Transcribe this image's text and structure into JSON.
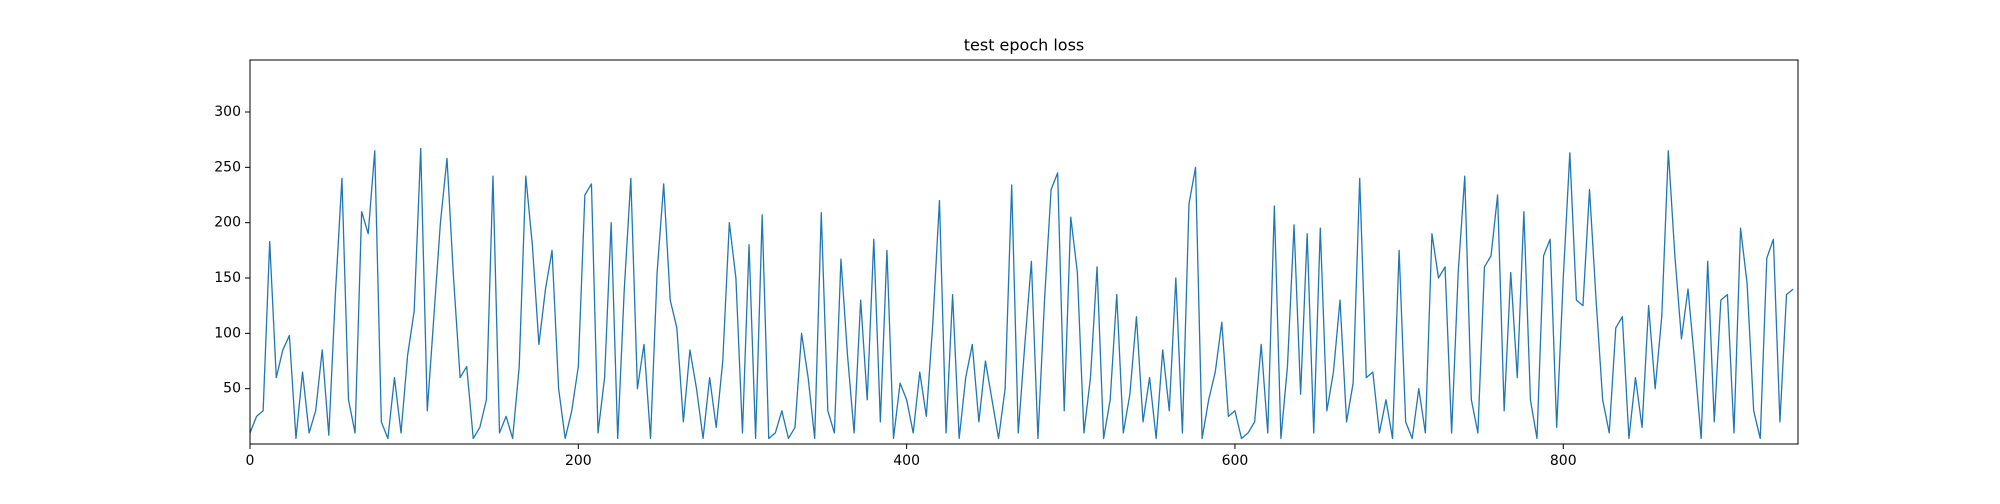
{
  "chart_data": {
    "type": "line",
    "title": "test epoch loss",
    "title_color": "#ff0000",
    "x": [
      0,
      4,
      8,
      12,
      16,
      20,
      24,
      28,
      32,
      36,
      40,
      44,
      48,
      52,
      56,
      60,
      64,
      68,
      72,
      76,
      80,
      84,
      88,
      92,
      96,
      100,
      104,
      108,
      112,
      116,
      120,
      124,
      128,
      132,
      136,
      140,
      144,
      148,
      152,
      156,
      160,
      164,
      168,
      172,
      176,
      180,
      184,
      188,
      192,
      196,
      200,
      204,
      208,
      212,
      216,
      220,
      224,
      228,
      232,
      236,
      240,
      244,
      248,
      252,
      256,
      260,
      264,
      268,
      272,
      276,
      280,
      284,
      288,
      292,
      296,
      300,
      304,
      308,
      312,
      316,
      320,
      324,
      328,
      332,
      336,
      340,
      344,
      348,
      352,
      356,
      360,
      364,
      368,
      372,
      376,
      380,
      384,
      388,
      392,
      396,
      400,
      404,
      408,
      412,
      416,
      420,
      424,
      428,
      432,
      436,
      440,
      444,
      448,
      452,
      456,
      460,
      464,
      468,
      472,
      476,
      480,
      484,
      488,
      492,
      496,
      500,
      504,
      508,
      512,
      516,
      520,
      524,
      528,
      532,
      536,
      540,
      544,
      548,
      552,
      556,
      560,
      564,
      568,
      572,
      576,
      580,
      584,
      588,
      592,
      596,
      600,
      604,
      608,
      612,
      616,
      620,
      624,
      628,
      632,
      636,
      640,
      644,
      648,
      652,
      656,
      660,
      664,
      668,
      672,
      676,
      680,
      684,
      688,
      692,
      696,
      700,
      704,
      708,
      712,
      716,
      720,
      724,
      728,
      732,
      736,
      740,
      744,
      748,
      752,
      756,
      760,
      764,
      768,
      772,
      776,
      780,
      784,
      788,
      792,
      796,
      800,
      804,
      808,
      812,
      816,
      820,
      824,
      828,
      832,
      836,
      840,
      844,
      848,
      852,
      856,
      860,
      864,
      868,
      872,
      876,
      880,
      884,
      888,
      892,
      896,
      900,
      904,
      908,
      912,
      916,
      920,
      924,
      928,
      932,
      936,
      940
    ],
    "series": [
      {
        "color": "#1f77b4",
        "values": [
          10,
          25,
          30,
          183,
          60,
          85,
          98,
          5,
          65,
          10,
          30,
          85,
          8,
          135,
          240,
          40,
          10,
          210,
          190,
          265,
          20,
          5,
          60,
          10,
          80,
          120,
          267,
          30,
          115,
          200,
          258,
          150,
          60,
          70,
          5,
          15,
          40,
          242,
          10,
          25,
          5,
          70,
          242,
          180,
          90,
          140,
          175,
          50,
          5,
          30,
          70,
          225,
          235,
          10,
          60,
          200,
          5,
          140,
          240,
          50,
          90,
          5,
          155,
          235,
          130,
          105,
          20,
          85,
          50,
          5,
          60,
          15,
          75,
          200,
          150,
          10,
          180,
          5,
          207,
          5,
          10,
          30,
          5,
          15,
          100,
          60,
          5,
          209,
          30,
          10,
          167,
          80,
          10,
          130,
          40,
          185,
          20,
          175,
          5,
          55,
          40,
          10,
          65,
          25,
          110,
          220,
          10,
          135,
          5,
          60,
          90,
          20,
          75,
          40,
          5,
          50,
          234,
          10,
          90,
          165,
          5,
          130,
          230,
          245,
          30,
          205,
          155,
          10,
          60,
          160,
          5,
          40,
          135,
          10,
          45,
          115,
          20,
          60,
          5,
          85,
          30,
          150,
          10,
          217,
          250,
          5,
          40,
          65,
          110,
          25,
          30,
          5,
          10,
          20,
          90,
          10,
          215,
          5,
          70,
          198,
          45,
          190,
          10,
          195,
          30,
          65,
          130,
          20,
          55,
          240,
          60,
          65,
          10,
          40,
          5,
          175,
          20,
          5,
          50,
          10,
          190,
          150,
          160,
          10,
          155,
          242,
          40,
          10,
          160,
          170,
          225,
          30,
          155,
          60,
          210,
          40,
          5,
          170,
          185,
          15,
          150,
          263,
          130,
          125,
          230,
          130,
          40,
          10,
          105,
          115,
          5,
          60,
          15,
          125,
          50,
          115,
          265,
          170,
          95,
          140,
          75,
          5,
          165,
          20,
          130,
          135,
          10,
          195,
          145,
          30,
          5,
          168,
          185,
          20,
          135,
          140
        ]
      }
    ],
    "xlim": [
      0,
      943
    ],
    "ylim": [
      0,
      347
    ],
    "xticks": [
      0,
      200,
      400,
      600,
      800
    ],
    "yticks": [
      50,
      100,
      150,
      200,
      250,
      300
    ]
  }
}
